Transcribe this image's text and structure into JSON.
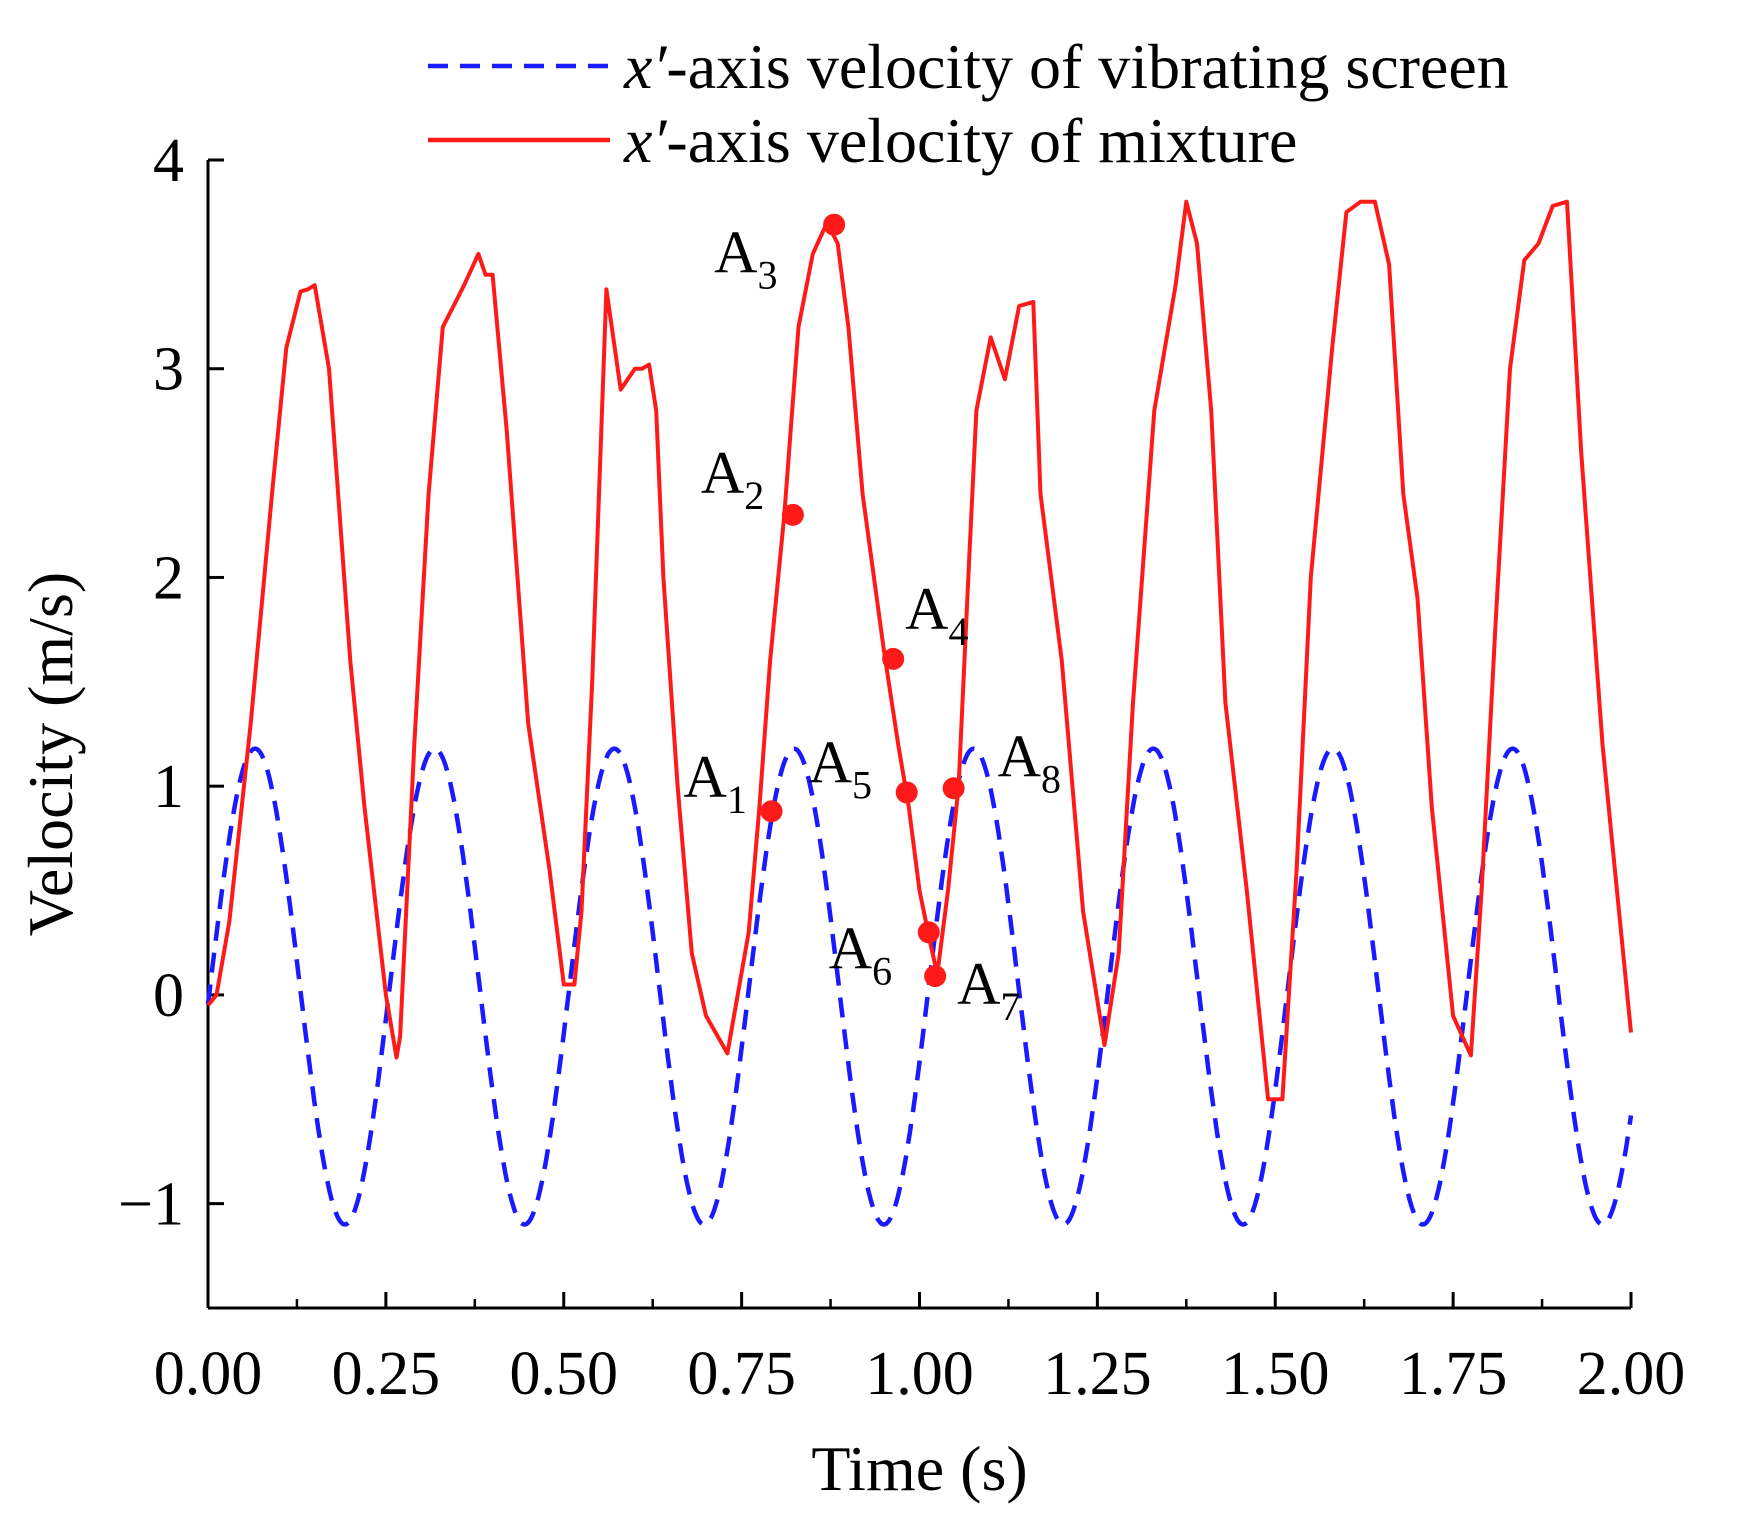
{
  "chart_data": {
    "type": "line",
    "title": "",
    "xlabel": "Time (s)",
    "ylabel": "Velocity (m/s)",
    "xlim": [
      0,
      2
    ],
    "ylim": [
      -1.5,
      4
    ],
    "x_ticks": [
      "0.00",
      "0.25",
      "0.50",
      "0.75",
      "1.00",
      "1.25",
      "1.50",
      "1.75",
      "2.00"
    ],
    "y_ticks": [
      "−1",
      "0",
      "1",
      "2",
      "3",
      "4"
    ],
    "legend_position": "top-right",
    "series": [
      {
        "name": "x′-axis velocity of vibrating screen",
        "legend_var": "x′",
        "legend_rest": "-axis velocity of vibrating screen",
        "style": "dashed",
        "color": "#1a1aff",
        "function": "sine",
        "amplitude": 1.14,
        "offset": 0.04,
        "period": 0.2525,
        "phase_zero_time": 0.003
      },
      {
        "name": "x′-axis velocity of mixture",
        "legend_var": "x′",
        "legend_rest": "-axis velocity of mixture",
        "style": "solid",
        "color": "#ff1a1a",
        "x": [
          0.0,
          0.012,
          0.03,
          0.06,
          0.09,
          0.11,
          0.13,
          0.14,
          0.15,
          0.17,
          0.2,
          0.22,
          0.25,
          0.265,
          0.27,
          0.29,
          0.31,
          0.33,
          0.345,
          0.36,
          0.38,
          0.39,
          0.4,
          0.42,
          0.45,
          0.48,
          0.5,
          0.515,
          0.525,
          0.54,
          0.56,
          0.58,
          0.6,
          0.61,
          0.62,
          0.63,
          0.64,
          0.66,
          0.68,
          0.7,
          0.73,
          0.76,
          0.775,
          0.79,
          0.81,
          0.83,
          0.85,
          0.87,
          0.885,
          0.9,
          0.92,
          0.95,
          0.97,
          0.985,
          1.0,
          1.015,
          1.025,
          1.04,
          1.055,
          1.07,
          1.08,
          1.1,
          1.12,
          1.14,
          1.16,
          1.17,
          1.2,
          1.23,
          1.26,
          1.28,
          1.3,
          1.33,
          1.36,
          1.375,
          1.39,
          1.41,
          1.43,
          1.46,
          1.49,
          1.51,
          1.53,
          1.55,
          1.58,
          1.6,
          1.62,
          1.64,
          1.66,
          1.68,
          1.7,
          1.72,
          1.75,
          1.775,
          1.79,
          1.81,
          1.83,
          1.85,
          1.87,
          1.89,
          1.91,
          1.93,
          1.96,
          2.0
        ],
        "y": [
          -0.05,
          0.0,
          0.35,
          1.3,
          2.4,
          3.1,
          3.37,
          3.38,
          3.4,
          3.0,
          1.6,
          0.9,
          0.0,
          -0.3,
          -0.2,
          1.2,
          2.4,
          3.2,
          3.3,
          3.4,
          3.55,
          3.45,
          3.45,
          2.7,
          1.3,
          0.6,
          0.05,
          0.05,
          0.4,
          1.5,
          3.38,
          2.9,
          3.0,
          3.0,
          3.02,
          2.8,
          2.0,
          1.0,
          0.2,
          -0.1,
          -0.28,
          0.3,
          0.9,
          1.6,
          2.3,
          3.2,
          3.55,
          3.7,
          3.6,
          3.2,
          2.4,
          1.65,
          1.2,
          0.9,
          0.5,
          0.25,
          0.1,
          0.5,
          1.0,
          2.1,
          2.8,
          3.15,
          2.95,
          3.3,
          3.32,
          2.4,
          1.6,
          0.4,
          -0.24,
          0.2,
          1.4,
          2.8,
          3.4,
          3.8,
          3.6,
          2.8,
          1.4,
          0.5,
          -0.5,
          -0.5,
          0.6,
          2.0,
          3.1,
          3.75,
          3.8,
          3.8,
          3.5,
          2.4,
          1.9,
          0.9,
          -0.1,
          -0.29,
          0.5,
          1.8,
          3.0,
          3.52,
          3.6,
          3.78,
          3.8,
          2.6,
          1.2,
          -0.18
        ]
      }
    ],
    "annotations": [
      {
        "main": "A",
        "sub": "1",
        "x": 0.792,
        "y": 0.88
      },
      {
        "main": "A",
        "sub": "2",
        "x": 0.822,
        "y": 2.3
      },
      {
        "main": "A",
        "sub": "3",
        "x": 0.88,
        "y": 3.69
      },
      {
        "main": "A",
        "sub": "4",
        "x": 0.963,
        "y": 1.61
      },
      {
        "main": "A",
        "sub": "5",
        "x": 0.982,
        "y": 0.97
      },
      {
        "main": "A",
        "sub": "6",
        "x": 1.013,
        "y": 0.3
      },
      {
        "main": "A",
        "sub": "7",
        "x": 1.022,
        "y": 0.09
      },
      {
        "main": "A",
        "sub": "8",
        "x": 1.048,
        "y": 0.99
      }
    ]
  }
}
